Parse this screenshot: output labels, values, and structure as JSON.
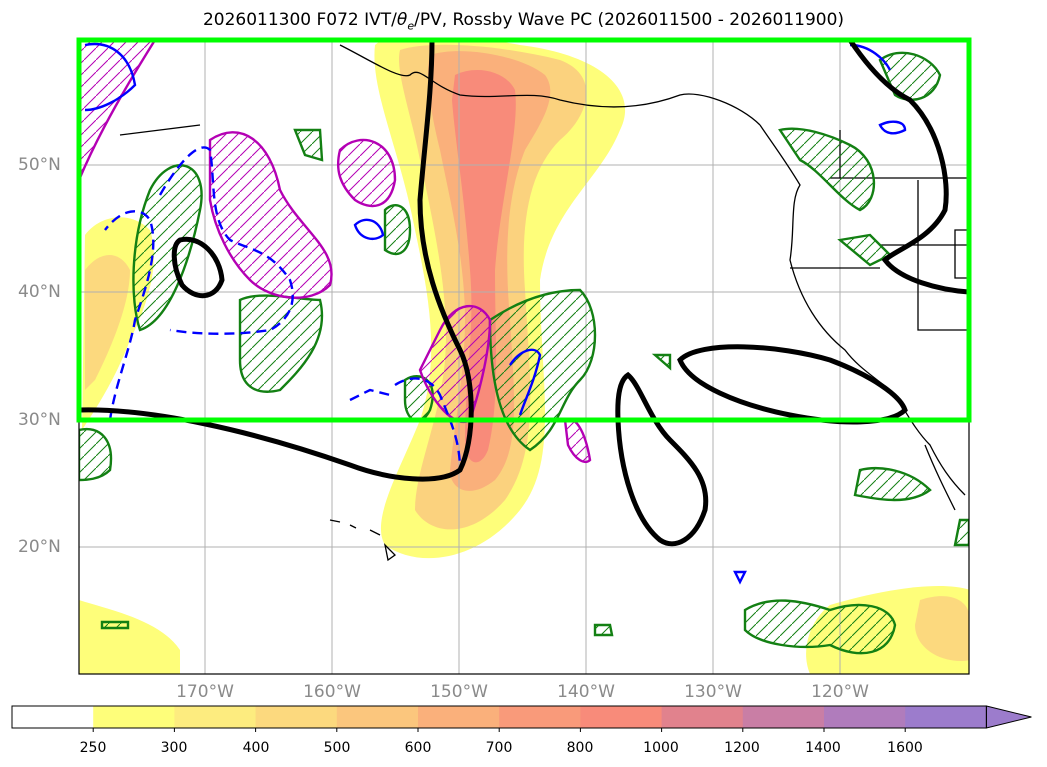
{
  "title": {
    "text_before": "2026011300 F072 IVT/",
    "theta_symbol": "θ",
    "theta_sub": "e",
    "text_after": "/PV, Rossby Wave PC (2026011500 - 2026011900)"
  },
  "lat_labels": [
    "50°N",
    "40°N",
    "30°N",
    "20°N"
  ],
  "lon_labels": [
    "170°W",
    "160°W",
    "150°W",
    "140°W",
    "130°W",
    "120°W"
  ],
  "colorbar": {
    "ticks": [
      "250",
      "300",
      "400",
      "500",
      "600",
      "700",
      "800",
      "1000",
      "1200",
      "1400",
      "1600"
    ],
    "colors": [
      "#ffffff",
      "#fefe7a",
      "#fdec7f",
      "#fcd97e",
      "#fbc67d",
      "#fab07b",
      "#f99a7a",
      "#f88b7a",
      "#e1828d",
      "#c97ea5",
      "#b07cbc",
      "#9c7ccc"
    ],
    "extend": "max"
  },
  "colors": {
    "rossby_box": "#00ff00",
    "trough_contour": "#000000",
    "green_hatch": "#138013",
    "magenta_hatch": "#b400b4",
    "blue_contour": "#0000ff"
  }
}
